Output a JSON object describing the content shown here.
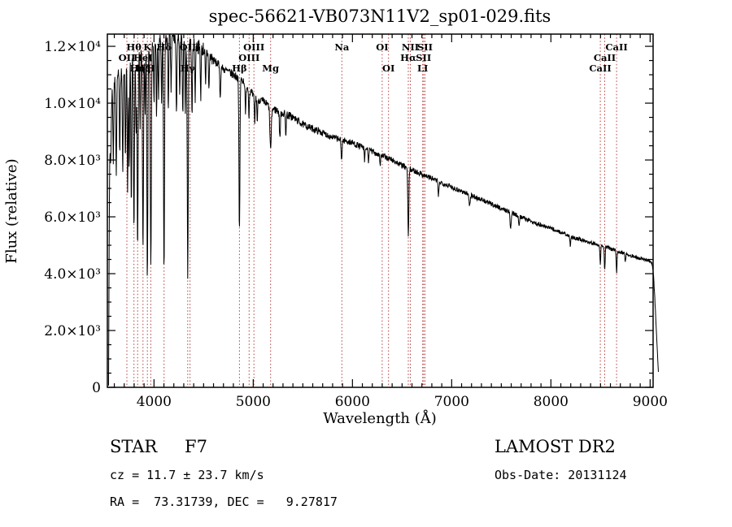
{
  "chart_data": {
    "type": "line",
    "title": "spec-56621-VB073N11V2_sp01-029.fits",
    "xlabel": "Wavelength (Å)",
    "ylabel": "Flux (relative)",
    "xlim": [
      3530,
      9030
    ],
    "ylim": [
      0,
      12430
    ],
    "x_minor_step": 100,
    "y_minor_step": 500,
    "x_ticks": [
      {
        "v": 4000,
        "label": "4000"
      },
      {
        "v": 5000,
        "label": "5000"
      },
      {
        "v": 6000,
        "label": "6000"
      },
      {
        "v": 7000,
        "label": "7000"
      },
      {
        "v": 8000,
        "label": "8000"
      },
      {
        "v": 9000,
        "label": "9000"
      }
    ],
    "y_ticks": [
      {
        "v": 0,
        "label": "0"
      },
      {
        "v": 2000,
        "label": "2.0×10³"
      },
      {
        "v": 4000,
        "label": "4.0×10³"
      },
      {
        "v": 6000,
        "label": "6.0×10³"
      },
      {
        "v": 8000,
        "label": "8.0×10³"
      },
      {
        "v": 10000,
        "label": "1.0×10⁴"
      },
      {
        "v": 12000,
        "label": "1.2×10⁴"
      }
    ],
    "colors": {
      "spectrum_line": "#000000",
      "feature_marker": "#b43c3c",
      "background": "#ffffff"
    },
    "continuum": [
      [
        3542,
        200
      ],
      [
        3552,
        7500
      ],
      [
        3565,
        10200
      ],
      [
        3600,
        10700
      ],
      [
        3650,
        11000
      ],
      [
        3720,
        11300
      ],
      [
        3800,
        11700
      ],
      [
        3900,
        11900
      ],
      [
        4000,
        12150
      ],
      [
        4100,
        12250
      ],
      [
        4200,
        12300
      ],
      [
        4300,
        12200
      ],
      [
        4400,
        12050
      ],
      [
        4500,
        11900
      ],
      [
        4600,
        11500
      ],
      [
        4700,
        11200
      ],
      [
        4800,
        11000
      ],
      [
        4900,
        10800
      ],
      [
        5000,
        10250
      ],
      [
        5100,
        10050
      ],
      [
        5200,
        9800
      ],
      [
        5300,
        9650
      ],
      [
        5400,
        9500
      ],
      [
        5500,
        9250
      ],
      [
        5600,
        9100
      ],
      [
        5700,
        8950
      ],
      [
        5800,
        8800
      ],
      [
        5900,
        8700
      ],
      [
        6000,
        8600
      ],
      [
        6100,
        8450
      ],
      [
        6200,
        8300
      ],
      [
        6300,
        8150
      ],
      [
        6400,
        8000
      ],
      [
        6500,
        7800
      ],
      [
        6600,
        7650
      ],
      [
        6700,
        7500
      ],
      [
        6800,
        7350
      ],
      [
        6900,
        7200
      ],
      [
        7000,
        7050
      ],
      [
        7100,
        6900
      ],
      [
        7200,
        6750
      ],
      [
        7300,
        6600
      ],
      [
        7400,
        6450
      ],
      [
        7500,
        6300
      ],
      [
        7600,
        6150
      ],
      [
        7700,
        6000
      ],
      [
        7800,
        5850
      ],
      [
        7900,
        5700
      ],
      [
        8000,
        5600
      ],
      [
        8100,
        5450
      ],
      [
        8200,
        5300
      ],
      [
        8300,
        5200
      ],
      [
        8400,
        5100
      ],
      [
        8500,
        5000
      ],
      [
        8600,
        4880
      ],
      [
        8700,
        4760
      ],
      [
        8800,
        4640
      ],
      [
        8900,
        4540
      ],
      [
        9000,
        4450
      ],
      [
        9015,
        4380
      ],
      [
        9030,
        4150
      ],
      [
        9045,
        3300
      ],
      [
        9060,
        2200
      ],
      [
        9075,
        1100
      ],
      [
        9085,
        400
      ]
    ],
    "absorption_lines": [
      [
        3565,
        2000,
        4
      ],
      [
        3590,
        2600,
        4
      ],
      [
        3620,
        3400,
        4
      ],
      [
        3655,
        2600,
        4
      ],
      [
        3685,
        3800,
        4
      ],
      [
        3712,
        3200,
        4
      ],
      [
        3734,
        4600,
        4
      ],
      [
        3750,
        4000,
        4
      ],
      [
        3771,
        5200,
        4
      ],
      [
        3798,
        6200,
        5
      ],
      [
        3820,
        2500,
        4
      ],
      [
        3835,
        6800,
        5
      ],
      [
        3860,
        2800,
        4
      ],
      [
        3889,
        7200,
        5
      ],
      [
        3910,
        2400,
        4
      ],
      [
        3933,
        8200,
        5
      ],
      [
        3968,
        8000,
        5
      ],
      [
        4000,
        2200,
        4
      ],
      [
        4026,
        2600,
        4
      ],
      [
        4045,
        2000,
        4
      ],
      [
        4077,
        2200,
        4
      ],
      [
        4101,
        8300,
        5
      ],
      [
        4144,
        2400,
        4
      ],
      [
        4172,
        1800,
        4
      ],
      [
        4226,
        2800,
        4
      ],
      [
        4260,
        2000,
        4
      ],
      [
        4290,
        2600,
        4
      ],
      [
        4315,
        2400,
        4
      ],
      [
        4340,
        8200,
        5
      ],
      [
        4383,
        2600,
        4
      ],
      [
        4415,
        1800,
        4
      ],
      [
        4471,
        1700,
        4
      ],
      [
        4520,
        1300,
        4
      ],
      [
        4554,
        1200,
        4
      ],
      [
        4668,
        1200,
        4
      ],
      [
        4861,
        5400,
        5
      ],
      [
        4922,
        1100,
        4
      ],
      [
        4957,
        900,
        4
      ],
      [
        5015,
        900,
        4
      ],
      [
        5041,
        800,
        4
      ],
      [
        5175,
        1500,
        7
      ],
      [
        5269,
        900,
        5
      ],
      [
        5328,
        700,
        4
      ],
      [
        5890,
        700,
        5
      ],
      [
        6122,
        450,
        4
      ],
      [
        6162,
        400,
        4
      ],
      [
        6280,
        350,
        4
      ],
      [
        6563,
        2400,
        5
      ],
      [
        6867,
        500,
        5
      ],
      [
        7180,
        350,
        6
      ],
      [
        7594,
        550,
        6
      ],
      [
        7680,
        300,
        5
      ],
      [
        8195,
        300,
        5
      ],
      [
        8498,
        650,
        4
      ],
      [
        8542,
        850,
        4
      ],
      [
        8662,
        800,
        4
      ],
      [
        8750,
        300,
        4
      ]
    ],
    "line_labels": [
      [
        "Hθ",
        3798,
        0
      ],
      [
        "K",
        3933,
        0
      ],
      [
        "Hδ",
        4101,
        0
      ],
      [
        "OIII",
        4363,
        0
      ],
      [
        "OIII",
        5007,
        0
      ],
      [
        "Na",
        5893,
        0
      ],
      [
        "OI",
        6300,
        0
      ],
      [
        "NII",
        6583,
        0
      ],
      [
        "SII",
        6731,
        0
      ],
      [
        "CaII",
        8662,
        0
      ],
      [
        "OII",
        3727,
        1
      ],
      [
        "HeI",
        3889,
        1
      ],
      [
        "OIII",
        4959,
        1
      ],
      [
        "Hα",
        6563,
        1
      ],
      [
        "SII",
        6717,
        1
      ],
      [
        "CaII",
        8542,
        1
      ],
      [
        "Hη",
        3835,
        2
      ],
      [
        "Hζ",
        3889,
        2
      ],
      [
        "H",
        3968,
        2
      ],
      [
        "Hγ",
        4340,
        2
      ],
      [
        "Hβ",
        4861,
        2
      ],
      [
        "Mg",
        5175,
        2
      ],
      [
        "OI",
        6364,
        2
      ],
      [
        "LI",
        6708,
        2
      ],
      [
        "CaII",
        8498,
        2
      ]
    ]
  },
  "footer": {
    "class_label": "STAR",
    "subclass": "F7",
    "survey": "LAMOST DR2",
    "cz": "cz = 11.7 ± 23.7 km/s",
    "obs_date": "Obs-Date: 20131124",
    "coords": "RA =  73.31739, DEC =   9.27817"
  }
}
